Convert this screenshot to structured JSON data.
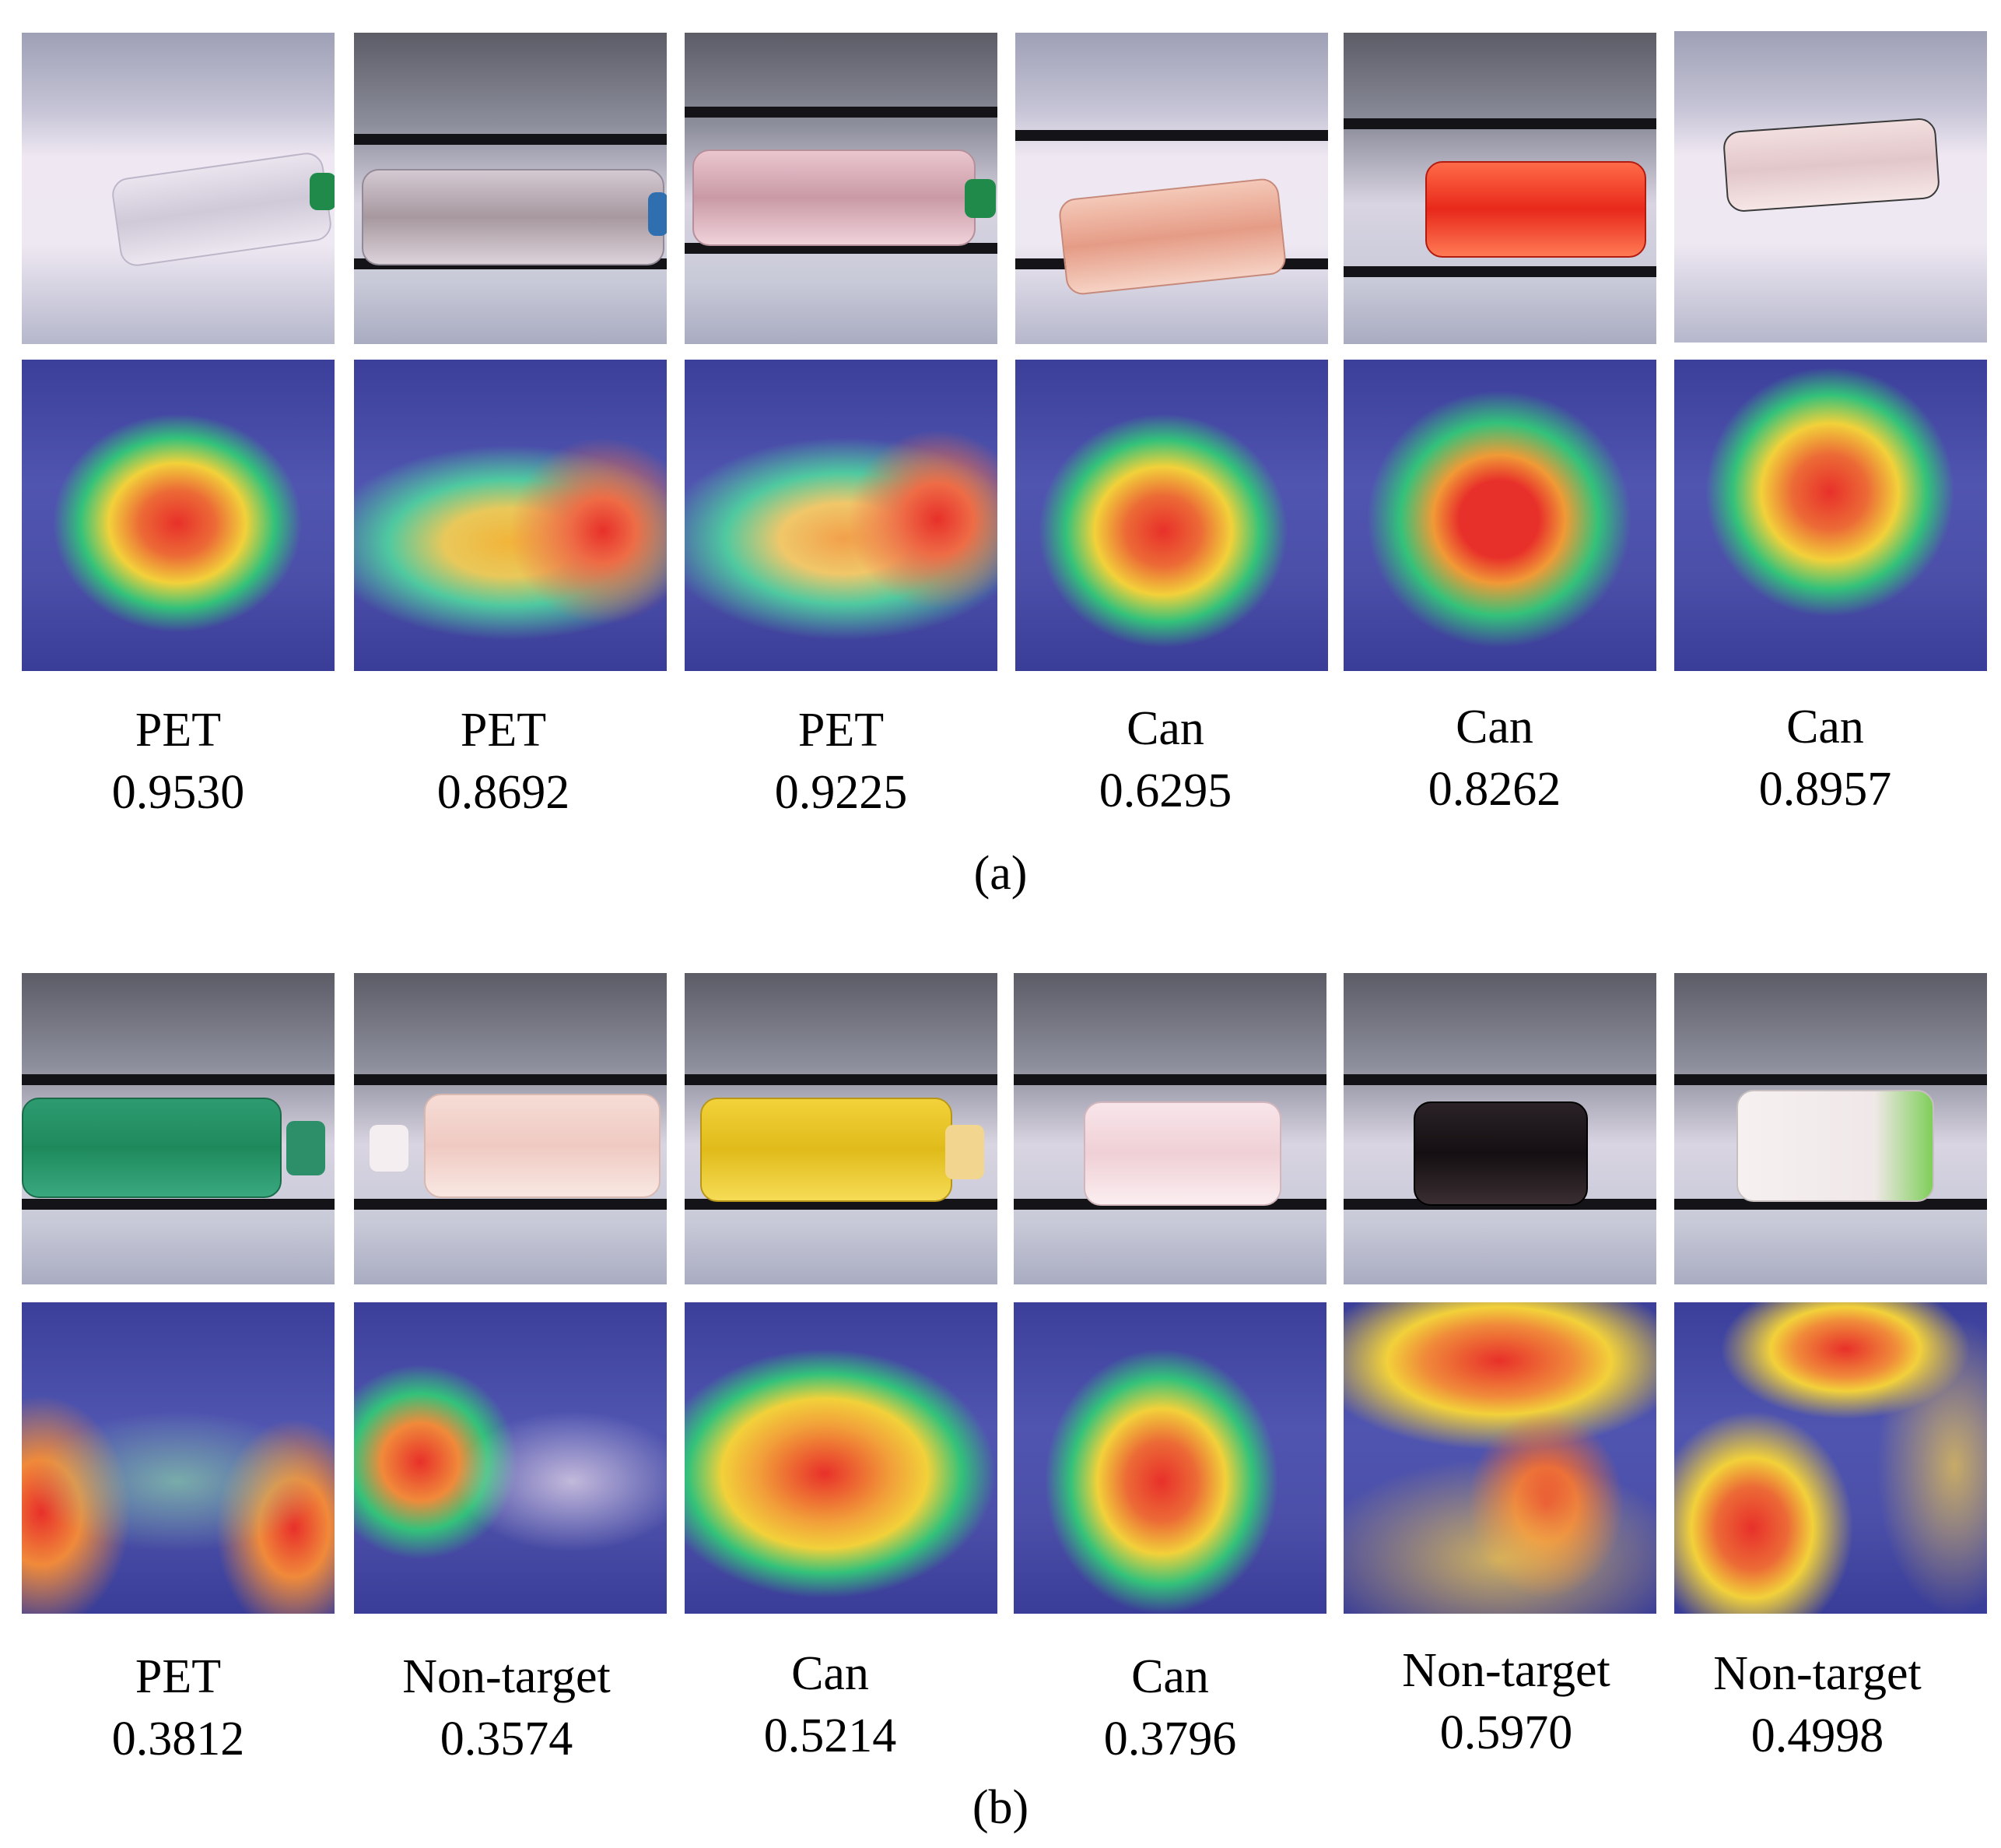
{
  "panels": [
    {
      "caption": "(a)",
      "items": [
        {
          "label": "PET",
          "score": "0.9530"
        },
        {
          "label": "PET",
          "score": "0.8692"
        },
        {
          "label": "PET",
          "score": "0.9225"
        },
        {
          "label": "Can",
          "score": "0.6295"
        },
        {
          "label": "Can",
          "score": "0.8262"
        },
        {
          "label": "Can",
          "score": "0.8957"
        }
      ]
    },
    {
      "caption": "(b)",
      "items": [
        {
          "label": "PET",
          "score": "0.3812"
        },
        {
          "label": "Non-target",
          "score": "0.3574"
        },
        {
          "label": "Can",
          "score": "0.5214"
        },
        {
          "label": "Can",
          "score": "0.3796"
        },
        {
          "label": "Non-target",
          "score": "0.5970"
        },
        {
          "label": "Non-target",
          "score": "0.4998"
        }
      ]
    }
  ],
  "colors": {
    "heatmap_low": "#3b3f9a",
    "heatmap_mid": "#33c27a",
    "heatmap_high": "#e8302a",
    "heatmap_warm": "#f2d13a"
  }
}
